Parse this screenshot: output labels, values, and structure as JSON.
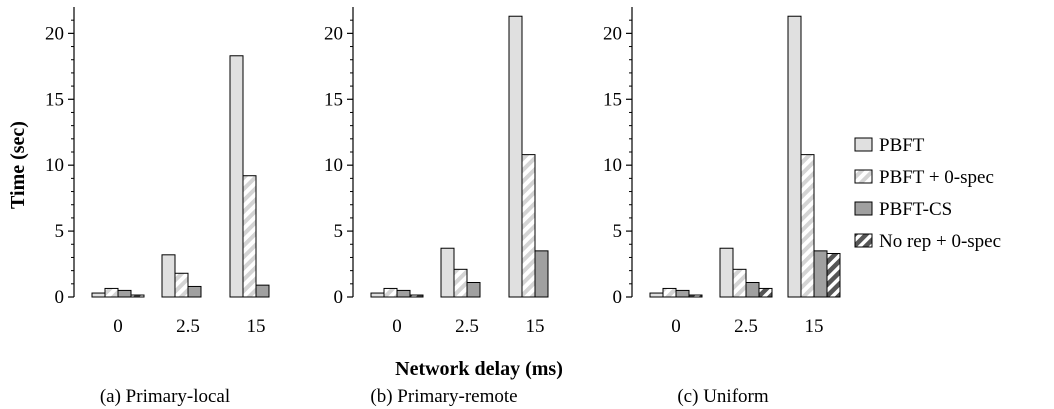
{
  "chart_data": {
    "type": "bar",
    "ylabel": "Time (sec)",
    "xlabel": "Network delay (ms)",
    "categories": [
      "0",
      "2.5",
      "15"
    ],
    "ylim": [
      0,
      22
    ],
    "yticks": [
      0,
      5,
      10,
      15,
      20
    ],
    "legend_position": "right",
    "legend": [
      {
        "name": "PBFT",
        "fill": "#e0e0e0",
        "pattern": "solid"
      },
      {
        "name": "PBFT + 0-spec",
        "fill": "#d8d8d8",
        "pattern": "hatch-light"
      },
      {
        "name": "PBFT-CS",
        "fill": "#a0a0a0",
        "pattern": "solid"
      },
      {
        "name": "No rep + 0-spec",
        "fill": "#606060",
        "pattern": "hatch-dark"
      }
    ],
    "panels": [
      {
        "caption": "(a) Primary-local",
        "series": [
          {
            "name": "PBFT",
            "values": [
              0.3,
              3.2,
              18.3
            ]
          },
          {
            "name": "PBFT + 0-spec",
            "values": [
              0.65,
              1.8,
              9.2
            ]
          },
          {
            "name": "PBFT-CS",
            "values": [
              0.5,
              0.8,
              0.9
            ]
          },
          {
            "name": "No rep + 0-spec",
            "values": [
              0.15,
              null,
              null
            ]
          }
        ]
      },
      {
        "caption": "(b) Primary-remote",
        "series": [
          {
            "name": "PBFT",
            "values": [
              0.3,
              3.7,
              21.3
            ]
          },
          {
            "name": "PBFT + 0-spec",
            "values": [
              0.65,
              2.1,
              10.8
            ]
          },
          {
            "name": "PBFT-CS",
            "values": [
              0.5,
              1.1,
              3.5
            ]
          },
          {
            "name": "No rep + 0-spec",
            "values": [
              0.15,
              null,
              null
            ]
          }
        ]
      },
      {
        "caption": "(c) Uniform",
        "series": [
          {
            "name": "PBFT",
            "values": [
              0.3,
              3.7,
              21.3
            ]
          },
          {
            "name": "PBFT + 0-spec",
            "values": [
              0.65,
              2.1,
              10.8
            ]
          },
          {
            "name": "PBFT-CS",
            "values": [
              0.5,
              1.1,
              3.5
            ]
          },
          {
            "name": "No rep + 0-spec",
            "values": [
              0.15,
              0.65,
              3.3
            ]
          }
        ]
      }
    ]
  }
}
